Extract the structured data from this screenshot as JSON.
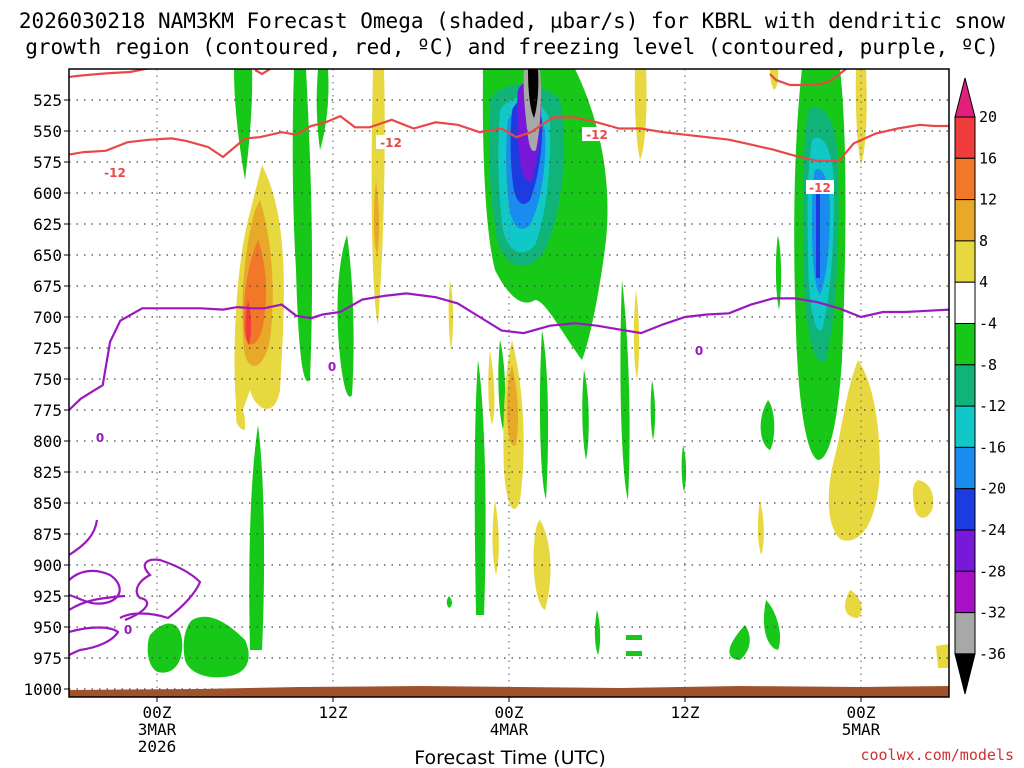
{
  "chart_data": {
    "type": "heatmap",
    "title_line1": "2026030218 NAM3KM Forecast Omega (shaded, µbar/s) for KBRL with dendritic snow",
    "title_line2": "growth region (contoured, red, ºC) and freezing level (contoured, purple, ºC)",
    "xlabel": "Forecast Time (UTC)",
    "credit": "coolwx.com/models",
    "y_axis": {
      "unit": "hPa",
      "min": 500,
      "max": 1000,
      "ticks": [
        525,
        550,
        575,
        600,
        625,
        650,
        675,
        700,
        725,
        750,
        775,
        800,
        825,
        850,
        875,
        900,
        925,
        950,
        975,
        1000
      ]
    },
    "x_axis": {
      "unit": "hours from 2026-03-02 18Z",
      "min": 0,
      "max": 60,
      "ticks": [
        {
          "hour": 6,
          "line1": "00Z",
          "line2": "3MAR",
          "line3": "2026"
        },
        {
          "hour": 18,
          "line1": "12Z",
          "line2": "",
          "line3": ""
        },
        {
          "hour": 30,
          "line1": "00Z",
          "line2": "4MAR",
          "line3": ""
        },
        {
          "hour": 42,
          "line1": "12Z",
          "line2": "",
          "line3": ""
        },
        {
          "hour": 54,
          "line1": "00Z",
          "line2": "5MAR",
          "line3": ""
        }
      ]
    },
    "colorbar": {
      "levels": [
        20,
        16,
        12,
        8,
        4,
        -4,
        -8,
        -12,
        -16,
        -20,
        -24,
        -28,
        -32,
        -36
      ],
      "colors": [
        "#e0207a",
        "#f03c3c",
        "#f07828",
        "#e8a828",
        "#e8d840",
        "#ffffff",
        "#18c818",
        "#10b478",
        "#10c8c8",
        "#1a8cf0",
        "#1c3ce0",
        "#7818d8",
        "#a810c8",
        "#a8a8a8",
        "#000000"
      ]
    },
    "series": [
      {
        "name": "freezing level 0°C",
        "color": "#9a18c0",
        "label": "0",
        "x": [
          0,
          0.8,
          1.6,
          2.3,
          2.8,
          3.5,
          5,
          7,
          9,
          10.5,
          11.5,
          12.5,
          13.3,
          14.5,
          15.5,
          16.5,
          17.3,
          18.5,
          20,
          21.5,
          23,
          25,
          26.5,
          28,
          29.5,
          31,
          32.8,
          34.5,
          36,
          37.5,
          39,
          40.5,
          42,
          43.5,
          45,
          46.5,
          48,
          49.5,
          51,
          52.5,
          54,
          55.5,
          57,
          58.5,
          60
        ],
        "y": [
          775,
          766,
          760,
          755,
          720,
          703,
          693,
          693,
          693,
          694,
          692,
          693,
          693,
          690,
          699,
          701,
          698,
          696,
          686,
          683,
          681,
          684,
          689,
          700,
          711,
          713,
          707,
          705,
          707,
          710,
          713,
          706,
          700,
          698,
          697,
          690,
          685,
          685,
          688,
          693,
          700,
          696,
          696,
          695,
          694
        ]
      },
      {
        "name": "dendritic growth -12°C",
        "color": "#e84848",
        "label": "-12",
        "x": [
          0,
          1,
          2.5,
          4,
          5.5,
          7,
          8,
          9.5,
          10.5,
          12,
          13,
          14.5,
          15.5,
          16.5,
          17.5,
          18.5,
          19.5,
          20.5,
          22,
          23.5,
          25,
          26.5,
          28,
          29.5,
          30.5,
          31.5,
          33,
          34.5,
          36,
          37.5,
          39,
          40.5,
          42,
          43.5,
          45,
          46.5,
          48,
          49.5,
          51,
          52.5,
          53.5,
          55,
          56.5,
          58,
          59,
          60
        ],
        "y": [
          569,
          567,
          566,
          559,
          557,
          556,
          558,
          563,
          571,
          556,
          555,
          551,
          553,
          546,
          543,
          538,
          547,
          547,
          541,
          548,
          543,
          545,
          551,
          548,
          555,
          551,
          539,
          539,
          543,
          548,
          548,
          551,
          553,
          555,
          557,
          561,
          565,
          570,
          574,
          574,
          560,
          552,
          548,
          545,
          546,
          546
        ]
      }
    ]
  }
}
